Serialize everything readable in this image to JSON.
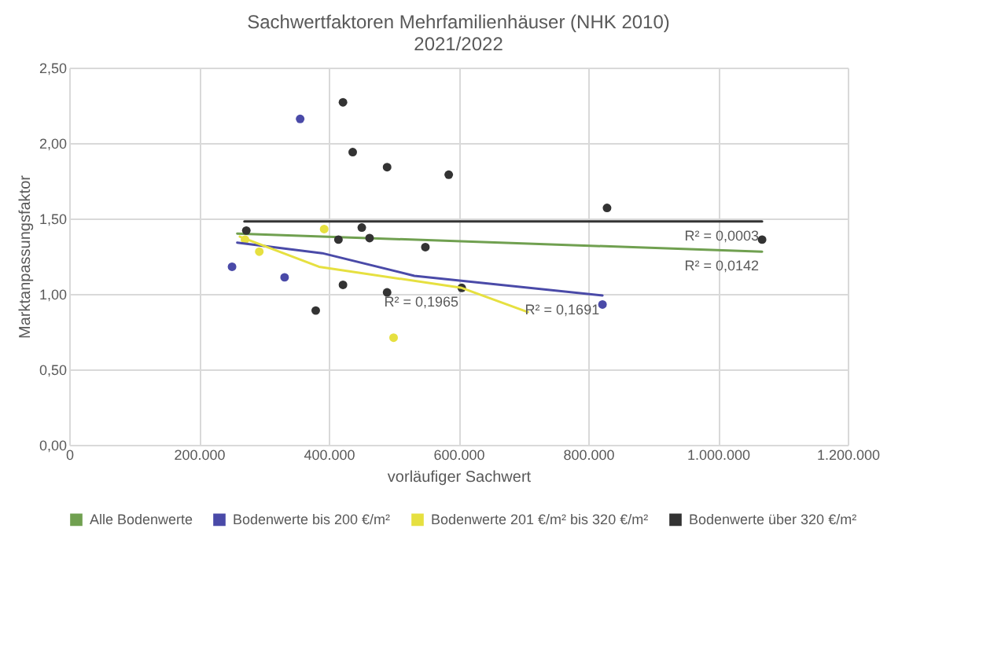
{
  "chart_data": {
    "type": "scatter",
    "title": "Sachwertfaktoren Mehrfamilienhäuser (NHK 2010)",
    "subtitle": "2021/2022",
    "xlabel": "vorläufiger Sachwert",
    "ylabel": "Marktanpassungsfaktor",
    "xlim": [
      0,
      1200000
    ],
    "xticks": [
      0,
      {
        "value": 200000,
        "label": "200.000"
      },
      {
        "value": 400000,
        "label": "400.000"
      },
      {
        "value": 600000,
        "label": "600.000"
      },
      {
        "value": 800000,
        "label": "800.000"
      },
      {
        "value": 1000000,
        "label": "1.000.000"
      },
      {
        "value": 1200000,
        "label": "1.200.000"
      }
    ],
    "ylim": [
      0,
      2.5
    ],
    "yticks": [
      {
        "value": 0,
        "label": "0,00"
      },
      {
        "value": 0.5,
        "label": "0,50"
      },
      {
        "value": 1,
        "label": "1,00"
      },
      {
        "value": 1.5,
        "label": "1,50"
      },
      {
        "value": 2,
        "label": "2,00"
      },
      {
        "value": 2.5,
        "label": "2,50"
      }
    ],
    "grid": true,
    "legend": "bottom",
    "series": [
      {
        "name": "Alle Bodenwerte",
        "type": "line",
        "marker": "none",
        "color": "#70a050",
        "x": [
          259000,
          1068000
        ],
        "values": [
          1.4,
          1.28
        ]
      },
      {
        "name": "Bodenwerte bis 200 €/m²",
        "marker": "circle",
        "color": "#4a4aa8",
        "x": [
          251000,
          332000,
          356000,
          822000
        ],
        "values": [
          1.18,
          1.11,
          2.16,
          0.93
        ]
      },
      {
        "name": "Bodenwerte 201 €/m² bis 320 €/m²",
        "marker": "circle",
        "color": "#e6e040",
        "x": [
          271000,
          293000,
          393000,
          500000
        ],
        "values": [
          1.36,
          1.28,
          1.43,
          0.71
        ]
      },
      {
        "name": "Bodenwerte über 320 €/m²",
        "marker": "circle",
        "color": "#333333",
        "x": [
          273000,
          380000,
          415000,
          422000,
          422000,
          437000,
          451000,
          463000,
          490000,
          490000,
          549000,
          585000,
          605000,
          829000,
          1068000
        ],
        "values": [
          1.42,
          0.89,
          1.36,
          2.27,
          1.06,
          1.94,
          1.44,
          1.37,
          1.84,
          1.01,
          1.31,
          1.79,
          1.04,
          1.57,
          1.36
        ]
      },
      {
        "type": "line",
        "marker": "none",
        "color": "#4a4aa8",
        "x": [
          259000,
          390000,
          532000,
          822000
        ],
        "values": [
          1.34,
          1.27,
          1.12,
          0.99
        ]
      },
      {
        "type": "line",
        "marker": "none",
        "color": "#e6e040",
        "x": [
          263000,
          385000,
          605000,
          707000
        ],
        "values": [
          1.38,
          1.18,
          1.04,
          0.88
        ]
      },
      {
        "type": "line",
        "marker": "none",
        "color": "#333333",
        "x": [
          270000,
          1068000
        ],
        "values": [
          1.48,
          1.48
        ]
      }
    ],
    "annotations": [
      {
        "text": "R² = 0,0003",
        "x": 1068000,
        "y": 1.48
      },
      {
        "text": "R² = 0,0142",
        "x": 1068000,
        "y": 1.28
      },
      {
        "text": "R² = 0,1691",
        "x": 822000,
        "y": 0.99
      },
      {
        "text": "R² = 0,1965",
        "x": 605000,
        "y": 1.04
      }
    ]
  }
}
